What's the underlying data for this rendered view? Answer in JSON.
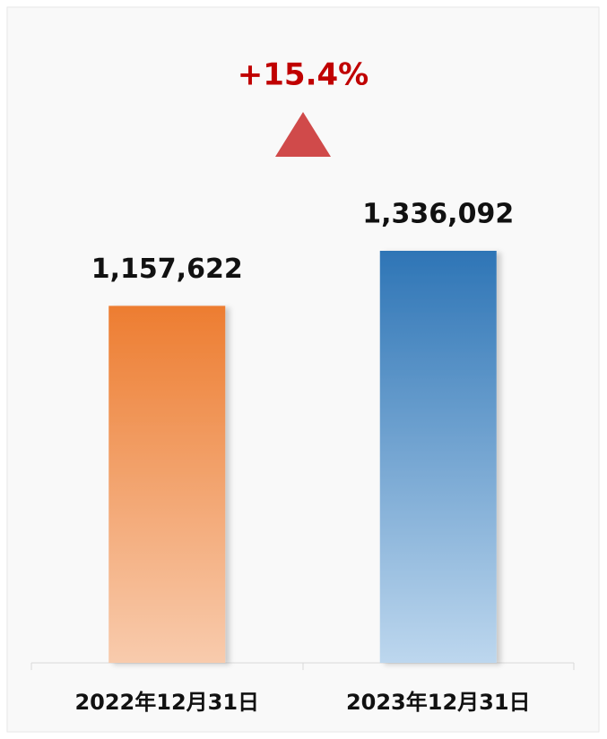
{
  "chart_data": {
    "type": "bar",
    "annotation": "+15.4%",
    "categories": [
      "2022年12月31日",
      "2023年12月31日"
    ],
    "values": [
      1157622,
      1336092
    ],
    "value_labels": [
      "1,157,622",
      "1,336,092"
    ],
    "colors": [
      [
        "#ed7d31",
        "#f8cbad"
      ],
      [
        "#2e75b6",
        "#bdd7ee"
      ]
    ],
    "annotation_color": "#c00000",
    "marker_color": "#d04a4a"
  }
}
